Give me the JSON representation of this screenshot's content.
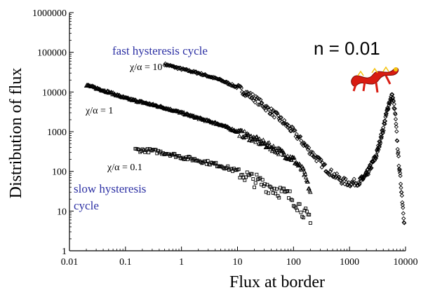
{
  "chart_data": {
    "type": "scatter",
    "xlabel": "Flux at border",
    "ylabel": "Distribution of flux",
    "xscale": "log",
    "yscale": "log",
    "xlim": [
      0.01,
      10000
    ],
    "ylim": [
      1,
      1000000
    ],
    "x_ticks": [
      "0.01",
      "0.1",
      "1",
      "10",
      "100",
      "1000",
      "10000"
    ],
    "y_ticks": [
      "1",
      "10",
      "100",
      "1000",
      "10000",
      "100000",
      "1000000"
    ],
    "annotations": {
      "fast": "fast hysteresis cycle",
      "slow_line1": "slow hysteresis",
      "slow_line2": "cycle",
      "n_label": "n = 0.01",
      "ratio_10": "χ/α = 10",
      "ratio_1": "χ/α = 1",
      "ratio_01": "χ/α = 0.1"
    },
    "series": [
      {
        "marker": "diamond",
        "x": [
          0.5,
          1,
          2,
          5,
          10,
          20,
          50,
          100,
          200,
          400,
          700,
          1000,
          1500,
          2000,
          3000,
          4000,
          5000,
          5800,
          6500,
          7500,
          8500,
          9500
        ],
        "y": [
          50000,
          38000,
          30000,
          20000,
          13000,
          7000,
          2500,
          1000,
          320,
          110,
          60,
          50,
          55,
          80,
          250,
          1200,
          5000,
          8000,
          3000,
          200,
          30,
          5
        ]
      },
      {
        "marker": "triangle",
        "x": [
          0.02,
          0.05,
          0.1,
          0.2,
          0.5,
          1,
          2,
          5,
          10,
          20,
          50,
          100,
          150,
          200
        ],
        "y": [
          15000,
          10000,
          7000,
          5500,
          4000,
          3000,
          2200,
          1500,
          1000,
          650,
          350,
          200,
          100,
          30
        ]
      },
      {
        "marker": "square",
        "x": [
          0.15,
          0.3,
          0.6,
          1,
          2,
          5,
          10,
          20,
          50,
          100,
          150,
          200
        ],
        "y": [
          350,
          330,
          280,
          230,
          190,
          140,
          100,
          60,
          35,
          20,
          10,
          5
        ]
      }
    ]
  }
}
